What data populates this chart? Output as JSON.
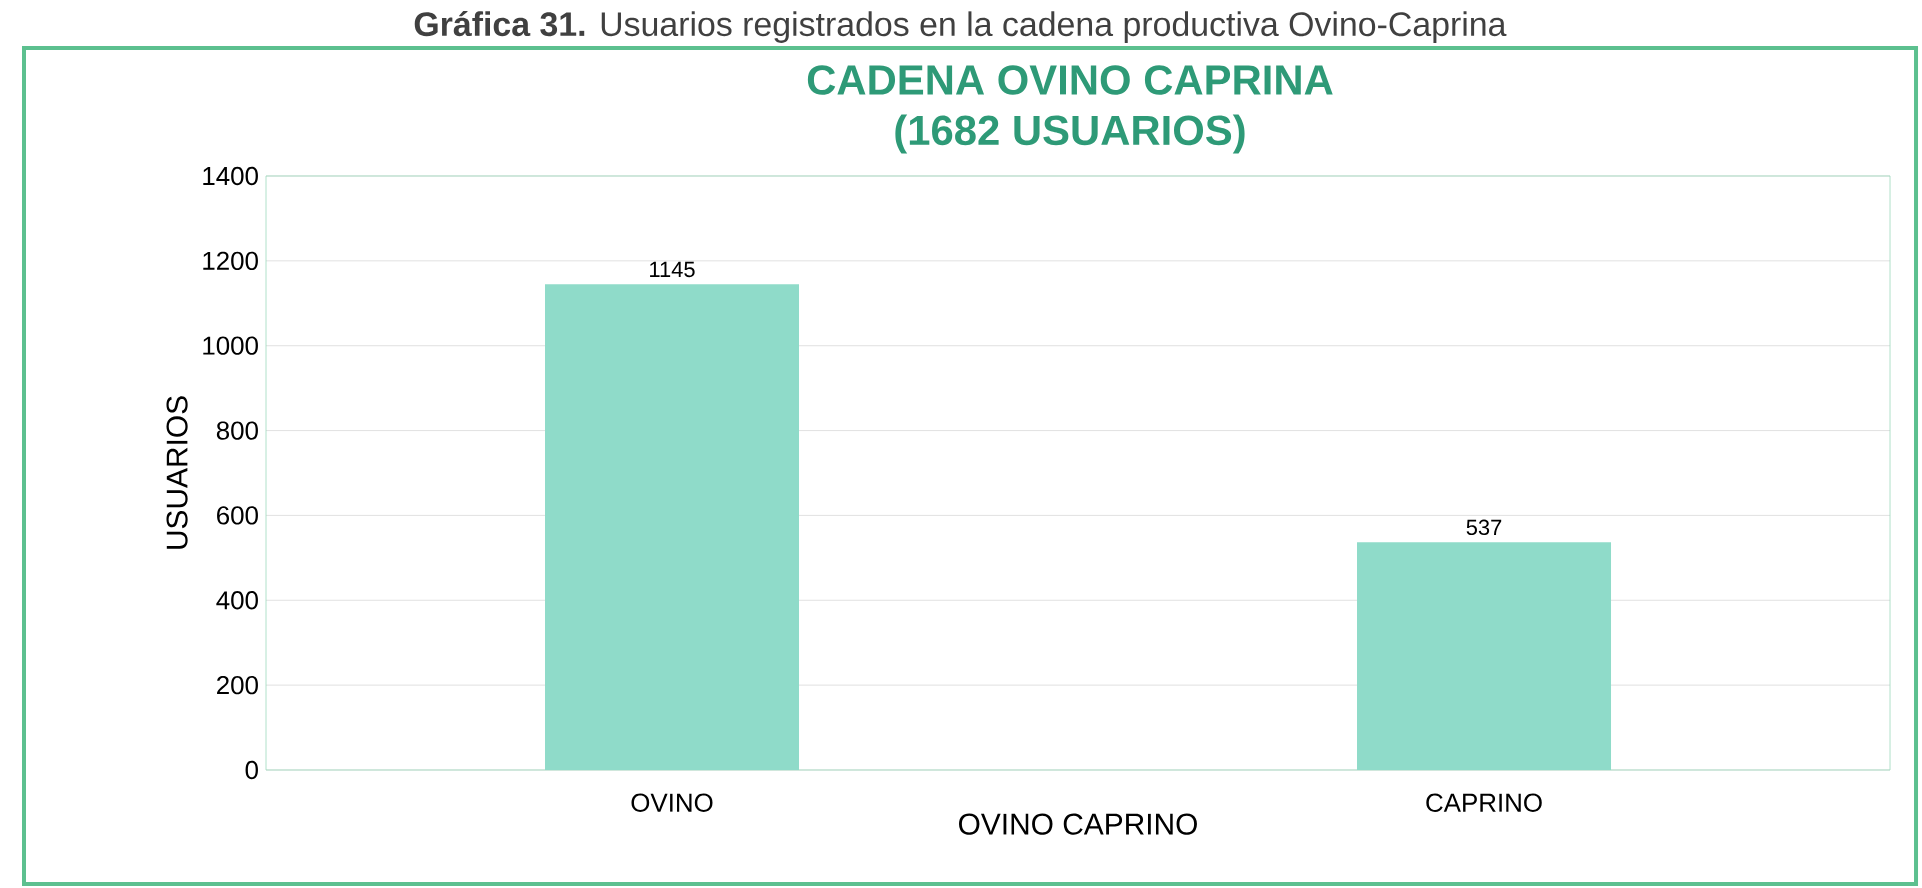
{
  "chart_data": {
    "type": "bar",
    "title": "CADENA OVINO CAPRINA",
    "subtitle": "(1682 USUARIOS)",
    "xlabel": "OVINO CAPRINO",
    "ylabel": "USUARIOS",
    "annotations": [
      "**Gráfica 31.** Usuarios registrados en la cadena productiva Ovino-Caprina"
    ],
    "categories": [
      "OVINO",
      "CAPRINO"
    ],
    "values": [
      1145,
      537
    ],
    "color": "#8fdbc9",
    "ylim": [
      0,
      1400
    ],
    "yticks": [
      0,
      200,
      400,
      600,
      800,
      1000,
      1200,
      1400
    ],
    "grid": "y",
    "data_labels": true
  }
}
